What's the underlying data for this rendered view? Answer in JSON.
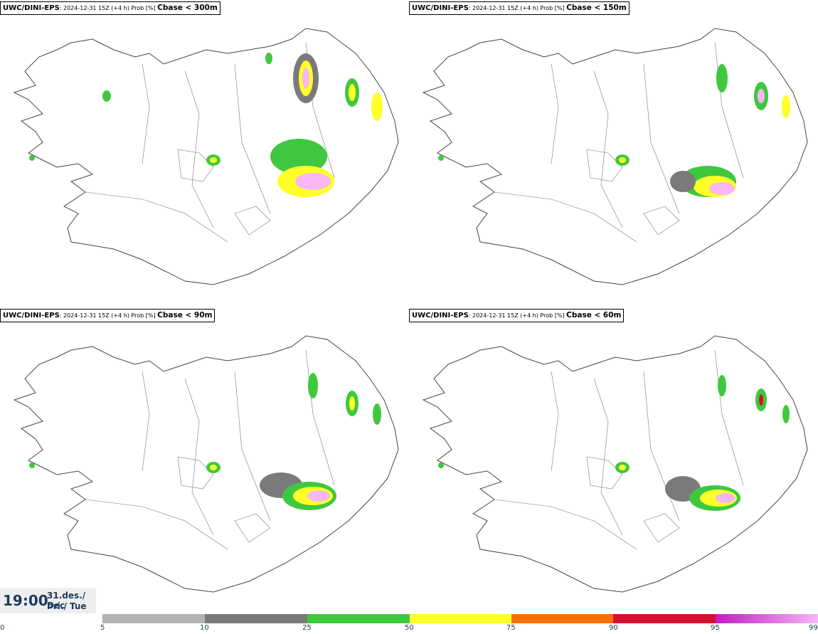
{
  "panels": [
    {
      "model": "UWC/DINI-EPS",
      "run": ": 2024-12-31 15Z (+4 h) Prob [%] ",
      "threshold": "Cbase < 300m"
    },
    {
      "model": "UWC/DINI-EPS",
      "run": ": 2024-12-31 15Z (+4 h) Prob [%] ",
      "threshold": "Cbase < 150m"
    },
    {
      "model": "UWC/DINI-EPS",
      "run": ": 2024-12-31 15Z (+4 h) Prob [%] ",
      "threshold": "Cbase < 90m"
    },
    {
      "model": "UWC/DINI-EPS",
      "run": ": 2024-12-31 15Z (+4 h) Prob [%] ",
      "threshold": "Cbase < 60m"
    }
  ],
  "valid_time": {
    "time": "19:00",
    "date_line1": "31.des./ Dec",
    "date_line2": "Þri./ Tue"
  },
  "legend": {
    "zero_label": "0",
    "bins": [
      {
        "from": "5",
        "to": "10",
        "color": "#b3b3b3"
      },
      {
        "from": "10",
        "to": "25",
        "color": "#7a7a7a"
      },
      {
        "from": "25",
        "to": "50",
        "color": "#3fc83f"
      },
      {
        "from": "50",
        "to": "75",
        "color": "#ffff2a"
      },
      {
        "from": "75",
        "to": "90",
        "color": "#ff6f00"
      },
      {
        "from": "90",
        "to": "95",
        "color": "#d4102e"
      },
      {
        "from": "95",
        "to": "99",
        "color": "#c020c0"
      }
    ],
    "end_label": "99",
    "end_color": "#f7b6f7"
  }
}
